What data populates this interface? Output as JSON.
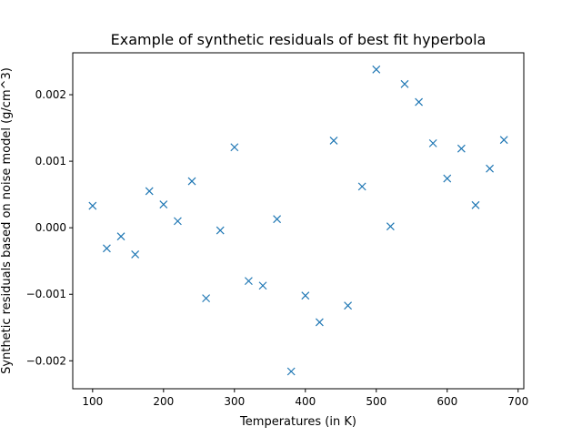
{
  "chart_data": {
    "type": "scatter",
    "title": "Example of synthetic residuals of best fit hyperbola",
    "xlabel": "Temperatures (in K)",
    "ylabel": "Synthetic residuals based on noise model (g/cm^3)",
    "xlim": [
      72,
      708
    ],
    "ylim": [
      -0.00242,
      0.00263
    ],
    "xticks": [
      100,
      200,
      300,
      400,
      500,
      600,
      700
    ],
    "xtick_labels": [
      "100",
      "200",
      "300",
      "400",
      "500",
      "600",
      "700"
    ],
    "yticks": [
      -0.002,
      -0.001,
      0.0,
      0.001,
      0.002
    ],
    "ytick_labels": [
      "−0.002",
      "−0.001",
      "0.000",
      "0.001",
      "0.002"
    ],
    "grid": false,
    "marker": "x",
    "color": "#1f77b4",
    "series": [
      {
        "x": [
          100,
          120,
          140,
          160,
          180,
          200,
          220,
          240,
          260,
          280,
          300,
          320,
          340,
          360,
          380,
          400,
          420,
          440,
          460,
          480,
          500,
          520,
          540,
          560,
          580,
          600,
          620,
          640,
          660,
          680
        ],
        "y": [
          0.00033,
          -0.00031,
          -0.00013,
          -0.0004,
          0.00055,
          0.00035,
          0.0001,
          0.0007,
          -0.00106,
          -4e-05,
          0.00121,
          -0.0008,
          -0.00087,
          0.00013,
          -0.00216,
          -0.00102,
          -0.00142,
          0.00131,
          -0.00117,
          0.00062,
          0.00238,
          2e-05,
          0.00216,
          0.00189,
          0.00127,
          0.00074,
          0.00119,
          0.00034,
          0.00089,
          0.00132
        ]
      }
    ]
  }
}
